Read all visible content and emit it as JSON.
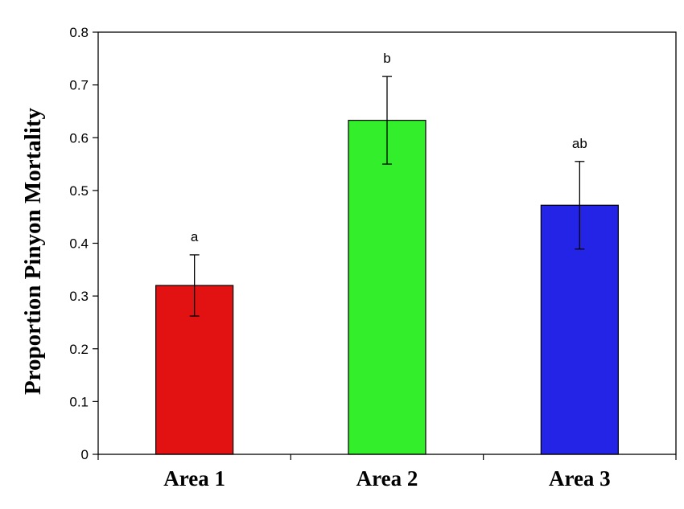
{
  "chart_data": {
    "type": "bar",
    "title": "",
    "xlabel": "",
    "ylabel": "Proportion Pinyon Mortality",
    "categories": [
      "Area 1",
      "Area 2",
      "Area 3"
    ],
    "values": [
      0.32,
      0.633,
      0.472
    ],
    "error": [
      0.058,
      0.083,
      0.083
    ],
    "significance_labels": [
      "a",
      "b",
      "ab"
    ],
    "colors": [
      "#e31212",
      "#33ee2a",
      "#2424e6"
    ],
    "ylim": [
      0,
      0.8
    ],
    "yticks": [
      0,
      0.1,
      0.2,
      0.3,
      0.4,
      0.5,
      0.6,
      0.7,
      0.8
    ],
    "ytick_labels": [
      "0",
      "0.1",
      "0.2",
      "0.3",
      "0.4",
      "0.5",
      "0.6",
      "0.7",
      "0.8"
    ],
    "grid": false,
    "legend": "none"
  }
}
